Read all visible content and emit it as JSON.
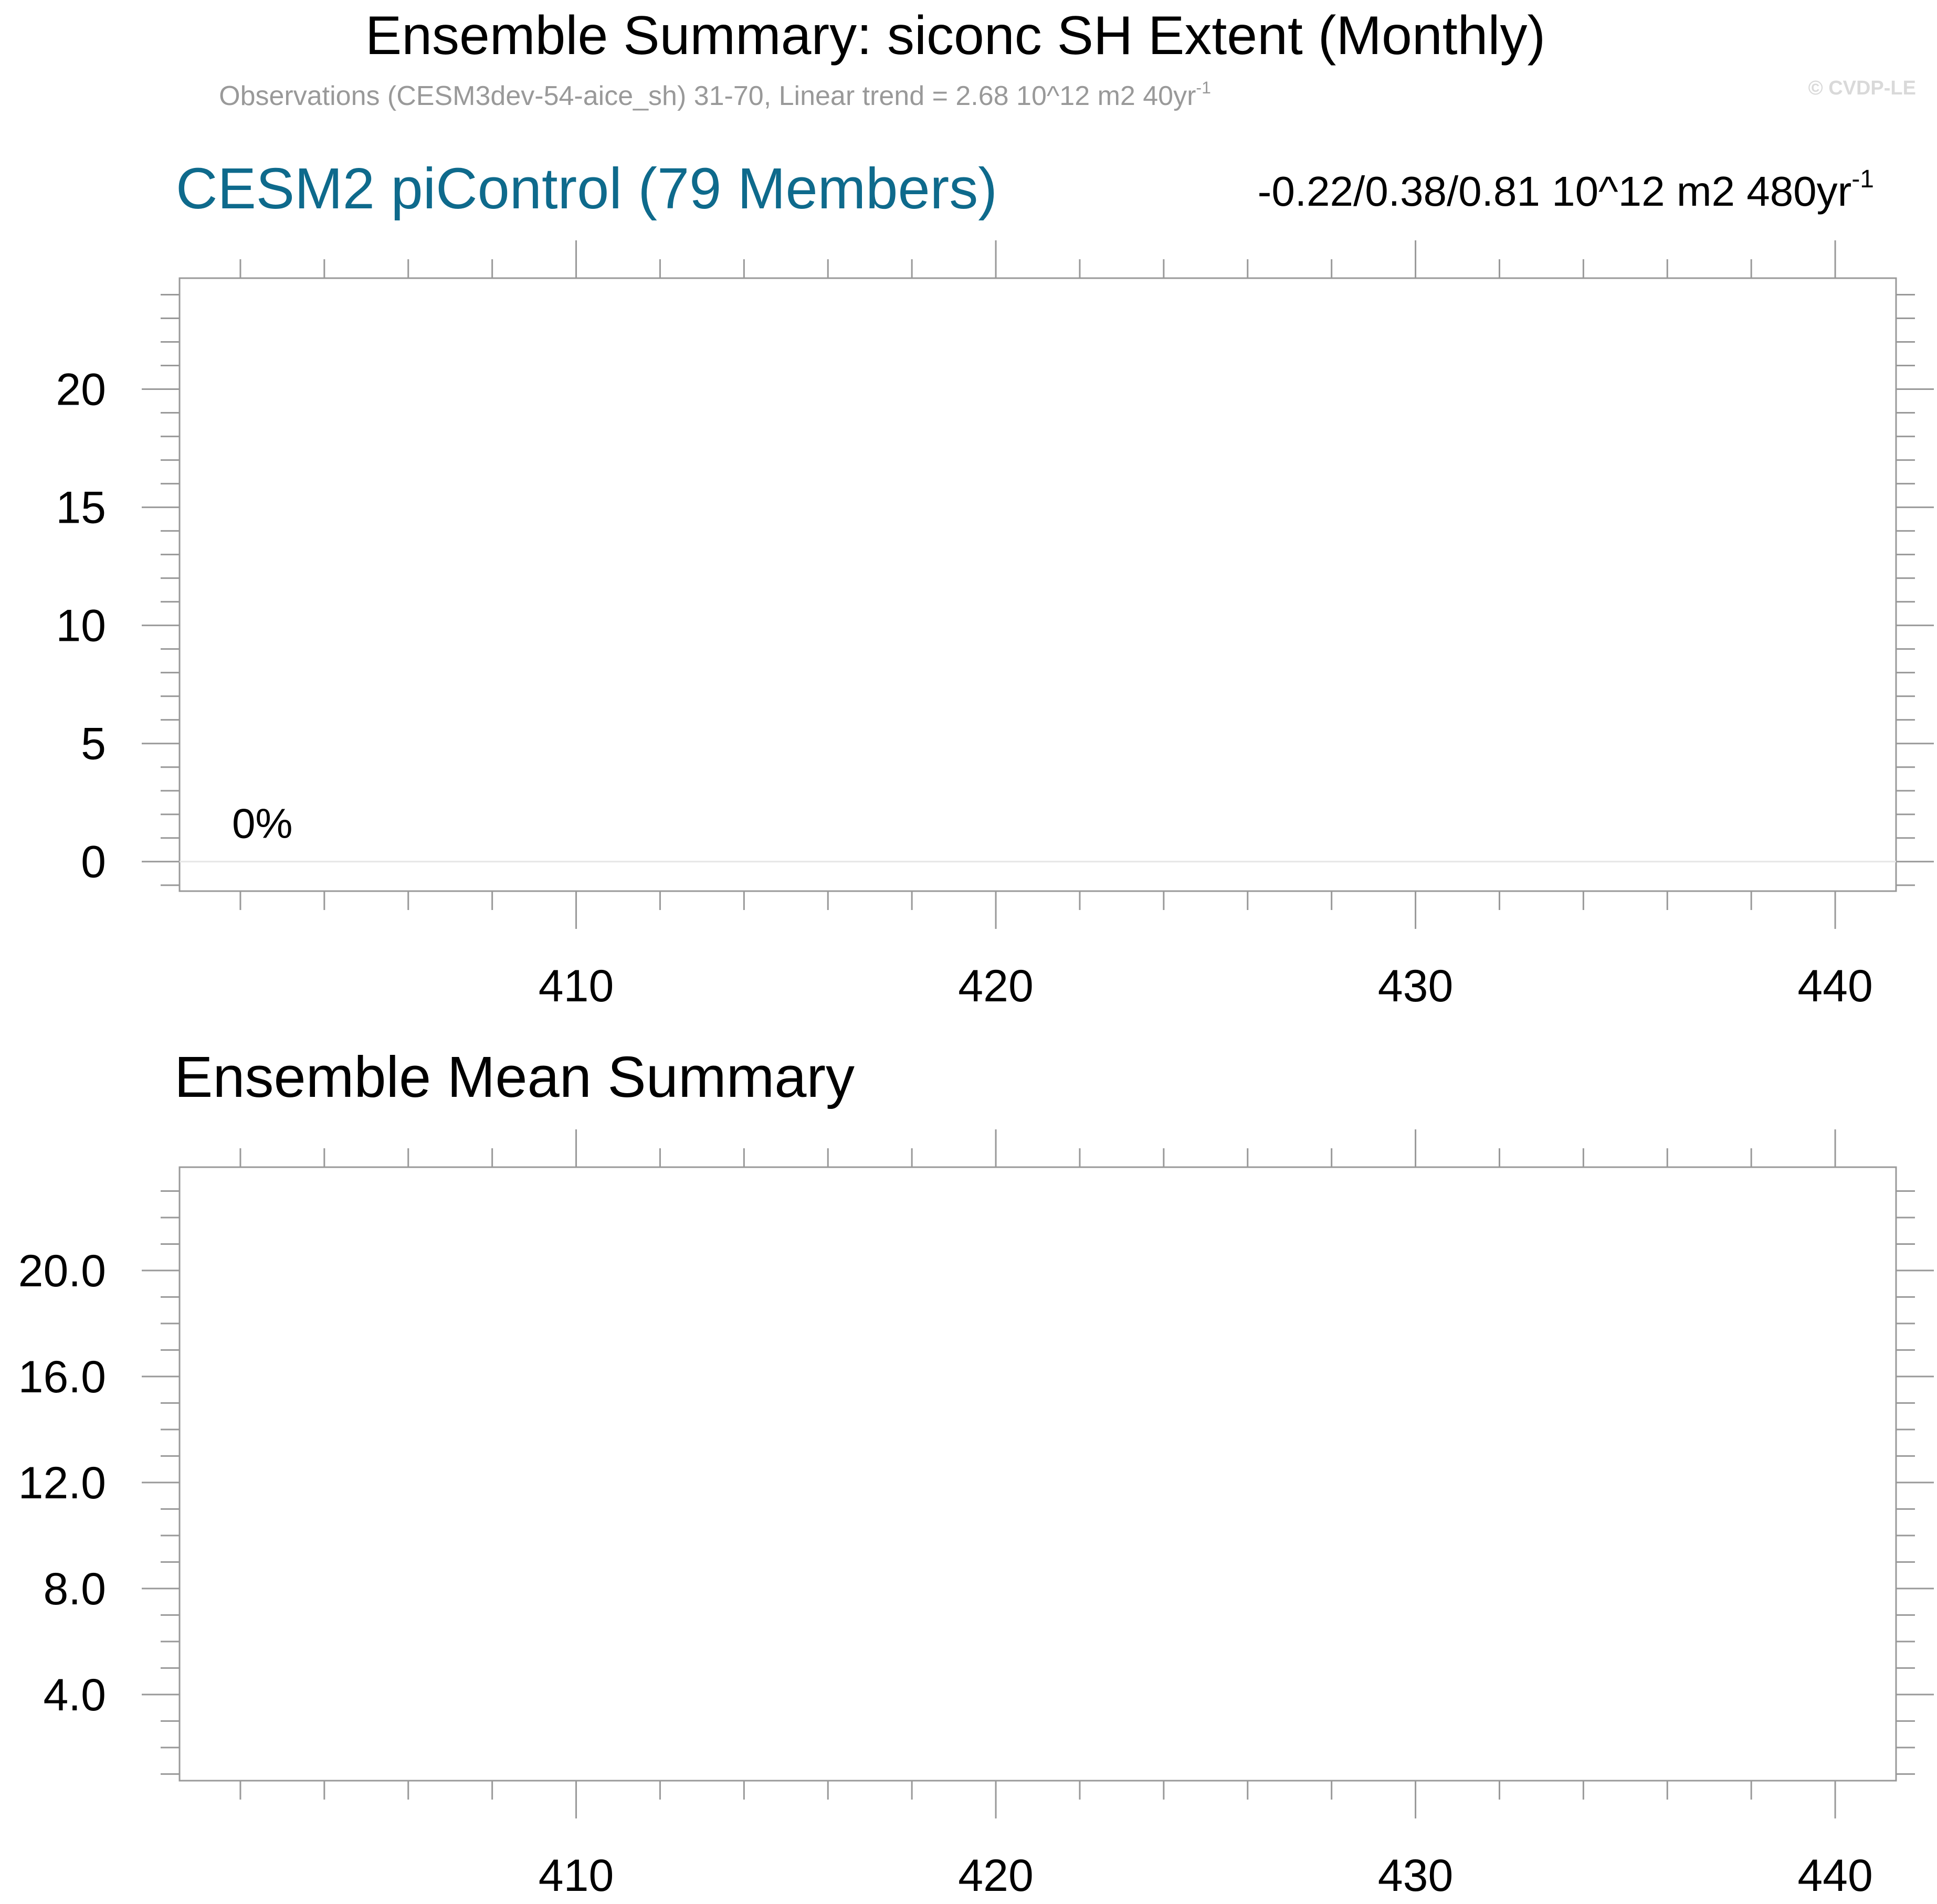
{
  "header": {
    "title": "Ensemble Summary: siconc SH Extent (Monthly)",
    "subtitle_main": "Observations (CESM3dev-54-aice_sh) 31-70, Linear trend = 2.68 10^12 m2 40yr",
    "subtitle_sup": "-1",
    "watermark": "© CVDP-LE"
  },
  "colors": {
    "text": "#000000",
    "accent_title": "#0e6a8c",
    "subtitle": "#999999",
    "watermark": "#d9d9d9",
    "frame": "#999999",
    "zero_line": "#e6e6e6"
  },
  "chart_data": [
    {
      "type": "line",
      "title": "CESM2 piControl (79 Members)",
      "right_label_main": "-0.22/0.38/0.81 10^12 m2 480yr",
      "right_label_sup": "-1",
      "annotation": "0%",
      "annotation_pos": [
        401.8,
        1
      ],
      "x_ticks": [
        410,
        420,
        430,
        440
      ],
      "x_tick_labels": [
        "410",
        "420",
        "430",
        "440"
      ],
      "xlim": [
        400.55,
        441.45
      ],
      "x_minor_step": 2,
      "y_ticks": [
        0,
        5,
        10,
        15,
        20
      ],
      "y_tick_labels": [
        "0",
        "5",
        "10",
        "15",
        "20"
      ],
      "ylim": [
        -1.25,
        24.7
      ],
      "y_minor_step": 1,
      "reference_line": 0,
      "series": []
    },
    {
      "type": "line",
      "title": "Ensemble Mean Summary",
      "x_ticks": [
        410,
        420,
        430,
        440
      ],
      "x_tick_labels": [
        "410",
        "420",
        "430",
        "440"
      ],
      "xlim": [
        400.55,
        441.45
      ],
      "x_minor_step": 2,
      "y_ticks": [
        4,
        8,
        12,
        16,
        20
      ],
      "y_tick_labels": [
        "4.0",
        "8.0",
        "12.0",
        "16.0",
        "20.0"
      ],
      "ylim": [
        0.75,
        23.9
      ],
      "y_minor_step": 1,
      "series": []
    }
  ]
}
